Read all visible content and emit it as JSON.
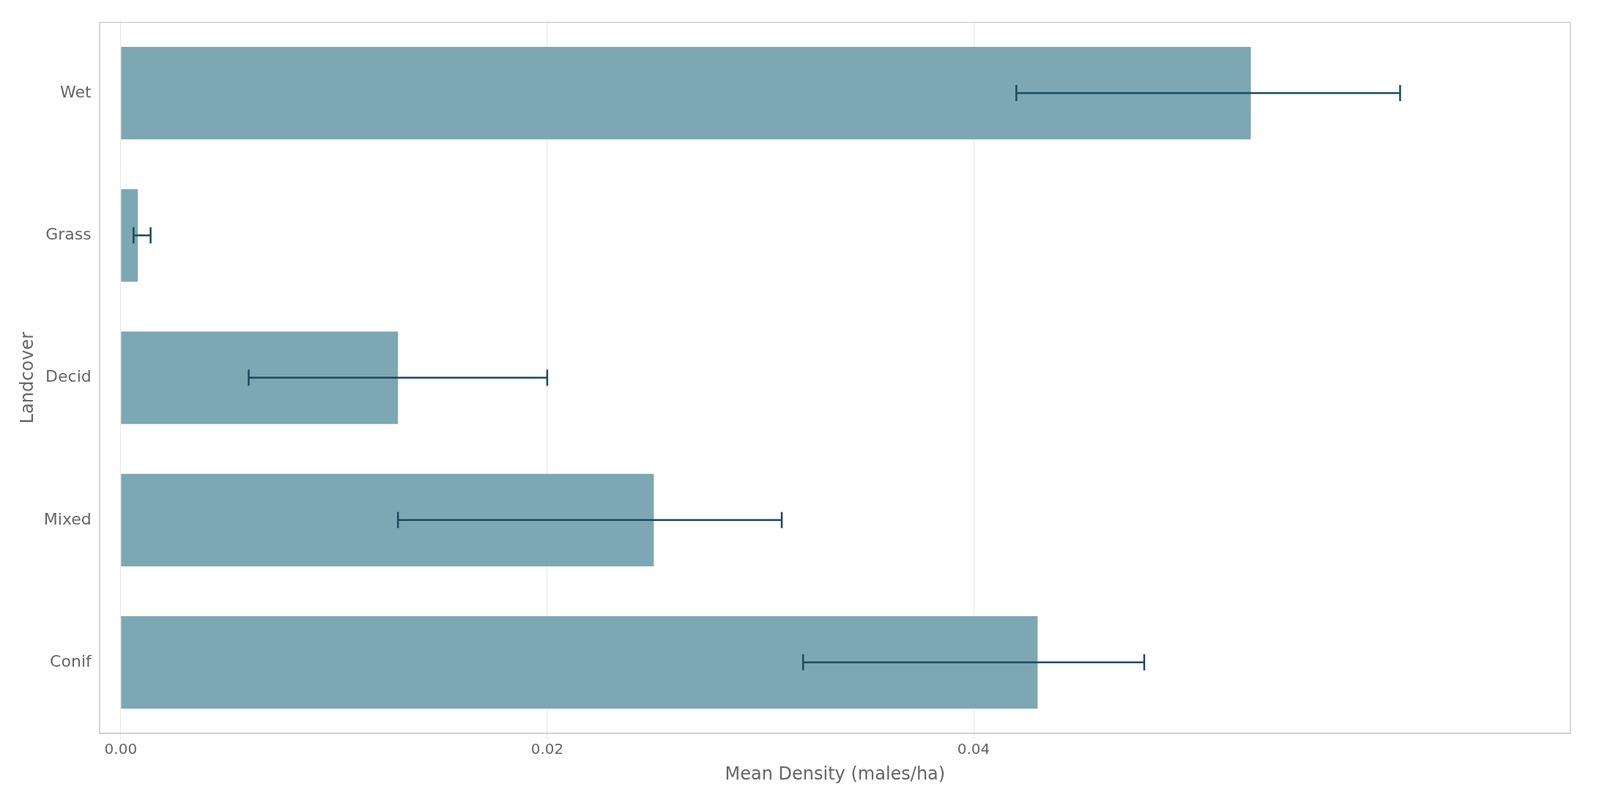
{
  "chart_data": {
    "type": "bar",
    "orientation": "horizontal",
    "xlabel": "Mean Density (males/ha)",
    "ylabel": "Landcover",
    "categories": [
      "Conif",
      "Mixed",
      "Decid",
      "Grass",
      "Wet"
    ],
    "values": [
      0.043,
      0.025,
      0.013,
      0.0008,
      0.053
    ],
    "error_low": [
      0.032,
      0.013,
      0.006,
      0.0006,
      0.042
    ],
    "error_high": [
      0.048,
      0.031,
      0.02,
      0.0014,
      0.06
    ],
    "color": "#7da7b3",
    "xlim": [
      -0.001,
      0.068
    ],
    "xticks": [
      {
        "value": 0,
        "label": "0.00"
      },
      0.02,
      0.04
    ],
    "grid": true
  }
}
